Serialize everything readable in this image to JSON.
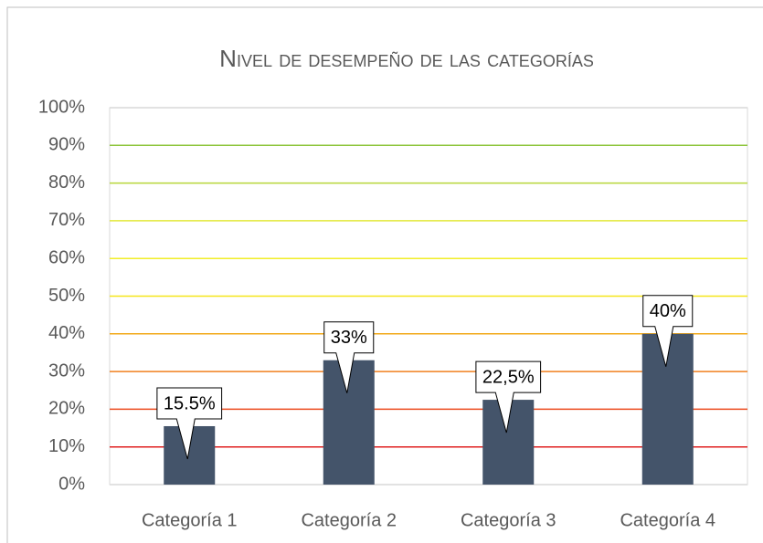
{
  "chart_data": {
    "type": "bar",
    "title": "Nivel de desempeño de las categorías",
    "categories": [
      "Categoría 1",
      "Categoría 2",
      "Categoría 3",
      "Categoría 4"
    ],
    "values": [
      15.5,
      33,
      22.5,
      40
    ],
    "value_labels": [
      "15.5%",
      "33%",
      "22,5%",
      "40%"
    ],
    "color": "#44546a",
    "ylim": [
      0,
      100
    ],
    "yticks": [
      {
        "value": 0,
        "label": "0%"
      },
      {
        "value": 10,
        "label": "10%"
      },
      {
        "value": 20,
        "label": "20%"
      },
      {
        "value": 30,
        "label": "30%"
      },
      {
        "value": 40,
        "label": "40%"
      },
      {
        "value": 50,
        "label": "50%"
      },
      {
        "value": 60,
        "label": "60%"
      },
      {
        "value": 70,
        "label": "70%"
      },
      {
        "value": 80,
        "label": "80%"
      },
      {
        "value": 90,
        "label": "90%"
      },
      {
        "value": 100,
        "label": "100%"
      }
    ],
    "grid": true,
    "grid_colors": [
      "#d9d9d9",
      "#e02020",
      "#ec4a1e",
      "#f07f1e",
      "#f2aa1a",
      "#f5e61a",
      "#f2ee2a",
      "#e2e83a",
      "#b8d63a",
      "#8cc43a",
      "#d9d9d9"
    ]
  }
}
